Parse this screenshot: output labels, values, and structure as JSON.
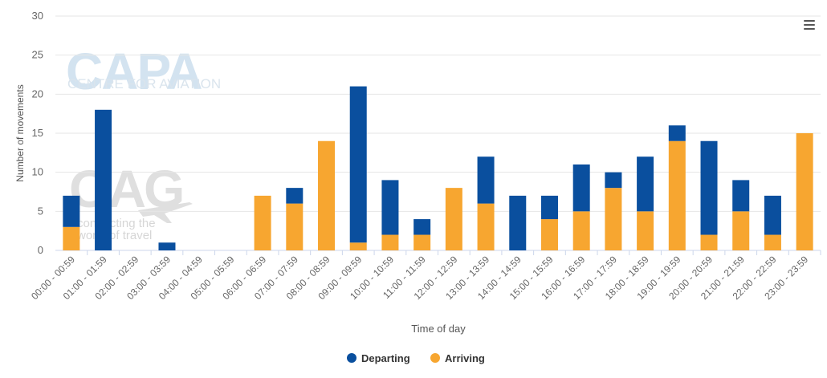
{
  "chart_data": {
    "type": "bar",
    "stacked": true,
    "categories": [
      "00:00 - 00:59",
      "01:00 - 01:59",
      "02:00 - 02:59",
      "03:00 - 03:59",
      "04:00 - 04:59",
      "05:00 - 05:59",
      "06:00 - 06:59",
      "07:00 - 07:59",
      "08:00 - 08:59",
      "09:00 - 09:59",
      "10:00 - 10:59",
      "11:00 - 11:59",
      "12:00 - 12:59",
      "13:00 - 13:59",
      "14:00 - 14:59",
      "15:00 - 15:59",
      "16:00 - 16:59",
      "17:00 - 17:59",
      "18:00 - 18:59",
      "19:00 - 19:59",
      "20:00 - 20:59",
      "21:00 - 21:59",
      "22:00 - 22:59",
      "23:00 - 23:59"
    ],
    "series": [
      {
        "name": "Departing",
        "color": "#0a4f9e",
        "values": [
          4,
          18,
          0,
          1,
          0,
          0,
          0,
          2,
          0,
          20,
          7,
          2,
          0,
          6,
          7,
          3,
          6,
          2,
          7,
          2,
          12,
          4,
          5,
          0
        ]
      },
      {
        "name": "Arriving",
        "color": "#f7a630",
        "values": [
          3,
          0,
          0,
          0,
          0,
          0,
          7,
          6,
          14,
          1,
          2,
          2,
          8,
          6,
          0,
          4,
          5,
          8,
          5,
          14,
          2,
          5,
          2,
          15
        ]
      }
    ],
    "xlabel": "Time of day",
    "ylabel": "Number of movements",
    "ylim": [
      0,
      30
    ],
    "yticks": [
      0,
      5,
      10,
      15,
      20,
      25,
      30
    ],
    "grid": true,
    "legend_position": "bottom-center"
  },
  "watermarks": {
    "capa_logo": "CAPA",
    "capa_tagline": "CENTRE FOR AVIATION",
    "oag_logo": "OAG",
    "oag_tagline_1": "connecting the",
    "oag_tagline_2": "world of travel"
  },
  "menu": {
    "icon": "hamburger-menu-icon"
  }
}
